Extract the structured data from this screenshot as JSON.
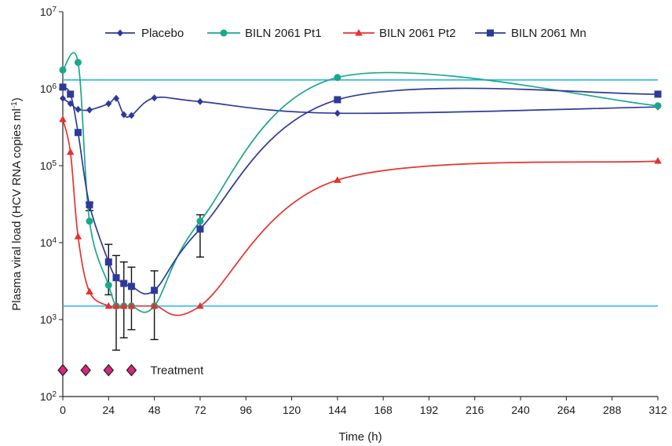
{
  "chart_data": {
    "type": "line",
    "title": "",
    "xlabel": "Time (h)",
    "ylabel": "Plasma viral load (HCV RNA copies ml",
    "ylabel_sup": "-1",
    "ylabel_close": ")",
    "xlim": [
      0,
      312
    ],
    "ylim": [
      100,
      10000000
    ],
    "yscale": "log",
    "x_ticks": [
      0,
      24,
      48,
      72,
      96,
      120,
      144,
      168,
      192,
      216,
      240,
      264,
      288,
      312
    ],
    "x_tick_labels": [
      "0",
      "24",
      "48",
      "72",
      "96",
      "120",
      "144",
      "168",
      "192",
      "216",
      "240",
      "264",
      "288",
      "312"
    ],
    "y_ticks": [
      {
        "value": 100,
        "base": "10",
        "exp": "2"
      },
      {
        "value": 1000,
        "base": "10",
        "exp": "3"
      },
      {
        "value": 10000,
        "base": "10",
        "exp": "4"
      },
      {
        "value": 100000,
        "base": "10",
        "exp": "5"
      },
      {
        "value": 1000000,
        "base": "10",
        "exp": "6"
      },
      {
        "value": 10000000,
        "base": "10",
        "exp": "7"
      }
    ],
    "grid": false,
    "legend_position": "top",
    "reference_lines": [
      {
        "y": 1300000,
        "color": "#29b6e6"
      },
      {
        "y": 1500,
        "color": "#29b6e6"
      }
    ],
    "series": [
      {
        "name": "Placebo",
        "color": "#2e3a9a",
        "marker": "diamond",
        "x": [
          0,
          4,
          8,
          14,
          24,
          28,
          32,
          36,
          48,
          72,
          144,
          312
        ],
        "y": [
          750000,
          640000,
          540000,
          530000,
          640000,
          750000,
          460000,
          450000,
          760000,
          680000,
          480000,
          580000
        ]
      },
      {
        "name": "BILN 2061 Pt1",
        "color": "#1aa88a",
        "marker": "circle",
        "x": [
          0,
          8,
          14,
          24,
          28,
          32,
          36,
          48,
          72,
          144,
          312
        ],
        "y": [
          1750000,
          2200000,
          19000,
          2800,
          1500,
          1500,
          1500,
          1500,
          19000,
          1400000,
          600000
        ]
      },
      {
        "name": "BILN 2061 Pt2",
        "color": "#e6322e",
        "marker": "triangle",
        "x": [
          0,
          4,
          8,
          14,
          24,
          28,
          32,
          36,
          48,
          72,
          144,
          312
        ],
        "y": [
          400000,
          150000,
          12000,
          2300,
          1500,
          1500,
          1500,
          1500,
          1500,
          1500,
          65000,
          115000
        ]
      },
      {
        "name": "BILN 2061 Mn",
        "color": "#2e3a9a",
        "marker": "square",
        "x": [
          0,
          4,
          8,
          14,
          24,
          28,
          32,
          36,
          48,
          72,
          144,
          312
        ],
        "y": [
          1050000,
          850000,
          270000,
          31000,
          5600,
          3500,
          2950,
          2700,
          2400,
          15000,
          720000,
          850000
        ],
        "error_bars": [
          {
            "x": 14,
            "low": 26000,
            "high": 33000
          },
          {
            "x": 24,
            "low": 2100,
            "high": 9500
          },
          {
            "x": 28,
            "low": 400,
            "high": 6800
          },
          {
            "x": 32,
            "low": 580,
            "high": 5600
          },
          {
            "x": 36,
            "low": 740,
            "high": 4800
          },
          {
            "x": 48,
            "low": 550,
            "high": 4300
          },
          {
            "x": 72,
            "low": 6500,
            "high": 23000
          }
        ]
      }
    ],
    "treatment_markers": {
      "label": "Treatment",
      "x": [
        0,
        12,
        24,
        36
      ],
      "y": 220,
      "color": "#d6287c"
    }
  }
}
